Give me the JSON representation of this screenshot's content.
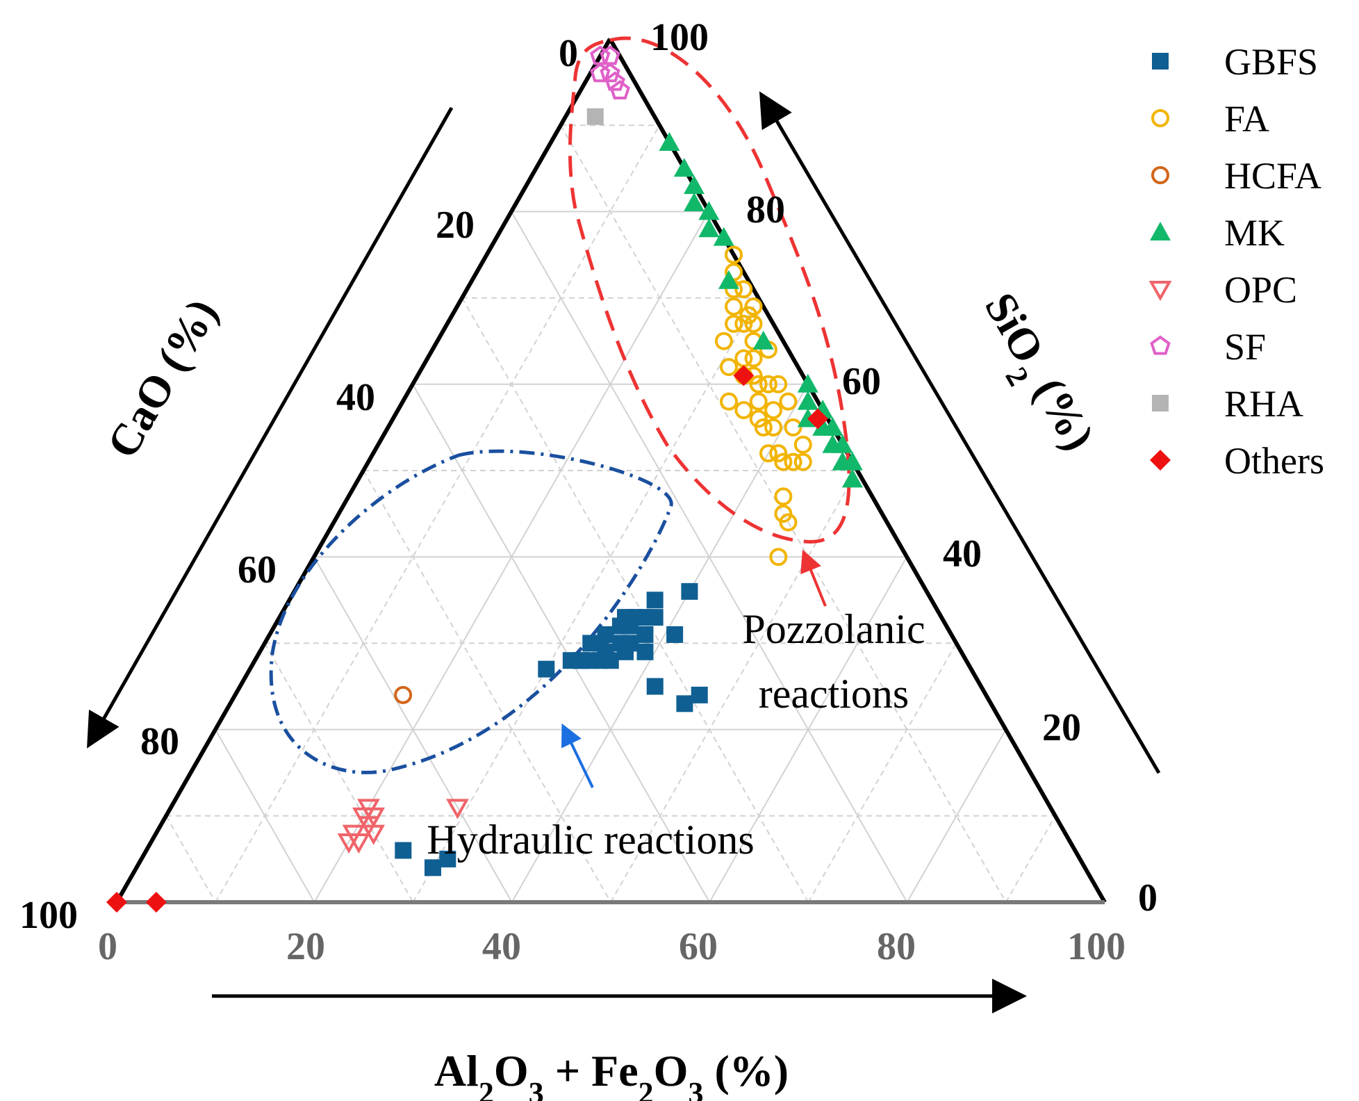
{
  "chart_data": {
    "type": "ternary-scatter",
    "axes": {
      "bottom": {
        "label_parts": [
          [
            "Al",
            false
          ],
          [
            "2",
            true
          ],
          [
            "O",
            false
          ],
          [
            "3",
            true
          ],
          [
            " + Fe",
            false
          ],
          [
            "2",
            true
          ],
          [
            "O",
            false
          ],
          [
            "3",
            true
          ],
          [
            " (%)",
            false
          ]
        ],
        "ticks": [
          "0",
          "20",
          "40",
          "60",
          "80",
          "100"
        ]
      },
      "left": {
        "label": "CaO (%)",
        "ticks": [
          "0",
          "20",
          "40",
          "60",
          "80",
          "100"
        ]
      },
      "right": {
        "label_parts": [
          [
            "SiO",
            false
          ],
          [
            "2",
            true
          ],
          [
            " (%)",
            false
          ]
        ],
        "ticks": [
          "0",
          "20",
          "40",
          "60",
          "80",
          "100"
        ]
      }
    },
    "grid_step": 10,
    "series": [
      {
        "name": "GBFS",
        "marker": "square",
        "filled": true,
        "color": "#0f5f93",
        "points": [
          [
            30,
            43,
            27
          ],
          [
            32,
            40,
            28
          ],
          [
            33,
            39,
            28
          ],
          [
            34,
            38,
            28
          ],
          [
            33,
            37,
            30
          ],
          [
            35,
            37,
            28
          ],
          [
            34,
            36,
            30
          ],
          [
            35,
            36,
            29
          ],
          [
            36,
            36,
            28
          ],
          [
            34,
            35,
            31
          ],
          [
            36,
            34,
            30
          ],
          [
            37,
            34,
            29
          ],
          [
            35,
            33,
            32
          ],
          [
            37,
            33,
            30
          ],
          [
            36,
            32,
            32
          ],
          [
            39,
            32,
            29
          ],
          [
            38,
            31,
            31
          ],
          [
            37,
            30,
            33
          ],
          [
            38,
            29,
            33
          ],
          [
            37,
            28,
            35
          ],
          [
            41,
            28,
            31
          ],
          [
            42,
            33,
            25
          ],
          [
            46,
            31,
            23
          ],
          [
            47,
            29,
            24
          ],
          [
            40,
            24,
            36
          ],
          [
            30,
            66,
            4
          ],
          [
            26,
            68,
            6
          ],
          [
            31,
            64,
            5
          ],
          [
            33,
            39,
            28
          ],
          [
            36,
            31,
            33
          ],
          [
            35,
            32,
            33
          ]
        ]
      },
      {
        "name": "FA",
        "marker": "circle",
        "filled": false,
        "color": "#f2b400",
        "points": [
          [
            25,
            0,
            75
          ],
          [
            26,
            1,
            73
          ],
          [
            27,
            2,
            71
          ],
          [
            28,
            1,
            71
          ],
          [
            28,
            3,
            69
          ],
          [
            29,
            4,
            67
          ],
          [
            30,
            1,
            69
          ],
          [
            31,
            2,
            67
          ],
          [
            30,
            3,
            67
          ],
          [
            32,
            3,
            65
          ],
          [
            33,
            4,
            63
          ],
          [
            32,
            5,
            63
          ],
          [
            34,
            5,
            61
          ],
          [
            33,
            6,
            61
          ],
          [
            35,
            5,
            60
          ],
          [
            36,
            4,
            60
          ],
          [
            36,
            6,
            58
          ],
          [
            37,
            7,
            56
          ],
          [
            38,
            5,
            57
          ],
          [
            38,
            7,
            55
          ],
          [
            39,
            6,
            55
          ],
          [
            40,
            8,
            52
          ],
          [
            41,
            7,
            52
          ],
          [
            42,
            7,
            51
          ],
          [
            43,
            6,
            51
          ],
          [
            44,
            9,
            47
          ],
          [
            45,
            10,
            45
          ],
          [
            46,
            10,
            44
          ],
          [
            47,
            13,
            40
          ],
          [
            29,
            6,
            65
          ],
          [
            31,
            7,
            62
          ],
          [
            33,
            9,
            58
          ],
          [
            35,
            8,
            57
          ],
          [
            30,
            2,
            68
          ],
          [
            34,
            2,
            64
          ],
          [
            37,
            3,
            60
          ],
          [
            39,
            3,
            58
          ],
          [
            41,
            4,
            55
          ],
          [
            43,
            4,
            53
          ],
          [
            44,
            5,
            51
          ]
        ]
      },
      {
        "name": "HCFA",
        "marker": "circle",
        "filled": false,
        "color": "#d4661a",
        "points": [
          [
            17,
            59,
            24
          ]
        ]
      },
      {
        "name": "MK",
        "marker": "triangle",
        "filled": true,
        "color": "#12b86a",
        "points": [
          [
            12,
            0,
            88
          ],
          [
            15,
            0,
            85
          ],
          [
            17,
            0,
            83
          ],
          [
            18,
            1,
            81
          ],
          [
            20,
            0,
            80
          ],
          [
            21,
            1,
            78
          ],
          [
            23,
            0,
            77
          ],
          [
            26,
            2,
            72
          ],
          [
            33,
            2,
            65
          ],
          [
            40,
            0,
            60
          ],
          [
            41,
            1,
            58
          ],
          [
            43,
            0,
            57
          ],
          [
            44,
            1,
            55
          ],
          [
            45,
            0,
            55
          ],
          [
            46,
            1,
            53
          ],
          [
            47,
            0,
            53
          ],
          [
            48,
            1,
            51
          ],
          [
            49,
            0,
            51
          ],
          [
            50,
            1,
            49
          ],
          [
            42,
            2,
            56
          ]
        ]
      },
      {
        "name": "OPC",
        "marker": "triangle-down",
        "filled": false,
        "color": "#f0646a",
        "points": [
          [
            20,
            73,
            7
          ],
          [
            20,
            72,
            8
          ],
          [
            21,
            72,
            7
          ],
          [
            20,
            70,
            10
          ],
          [
            21,
            70,
            9
          ],
          [
            21,
            69,
            10
          ],
          [
            20,
            69,
            11
          ],
          [
            22,
            70,
            8
          ],
          [
            29,
            60,
            11
          ]
        ]
      },
      {
        "name": "SF",
        "marker": "pentagon",
        "filled": false,
        "color": "#e060c8",
        "points": [
          [
            0,
            2,
            98
          ],
          [
            1,
            3,
            96
          ],
          [
            2,
            2,
            96
          ],
          [
            1,
            1,
            98
          ],
          [
            3,
            2,
            95
          ],
          [
            4,
            2,
            94
          ]
        ]
      },
      {
        "name": "RHA",
        "marker": "square",
        "filled": true,
        "color": "#b4b4b4",
        "points": [
          [
            3,
            6,
            91
          ]
        ]
      },
      {
        "name": "Others",
        "marker": "diamond",
        "filled": true,
        "color": "#ee1111",
        "points": [
          [
            0,
            100,
            0
          ],
          [
            4,
            96,
            0
          ],
          [
            33,
            6,
            61
          ],
          [
            43,
            1,
            56
          ]
        ]
      }
    ],
    "regions": [
      {
        "name": "Hydraulic reactions",
        "style": "dash-dot",
        "color": "#1a4f9f"
      },
      {
        "name": "Pozzolanic reactions",
        "style": "dash",
        "color": "#ee3333"
      }
    ],
    "annotations": {
      "hydraulic": "Hydraulic reactions",
      "pozzolanic_line1": "Pozzolanic",
      "pozzolanic_line2": "reactions"
    },
    "legend": {
      "position": "top-right"
    }
  }
}
